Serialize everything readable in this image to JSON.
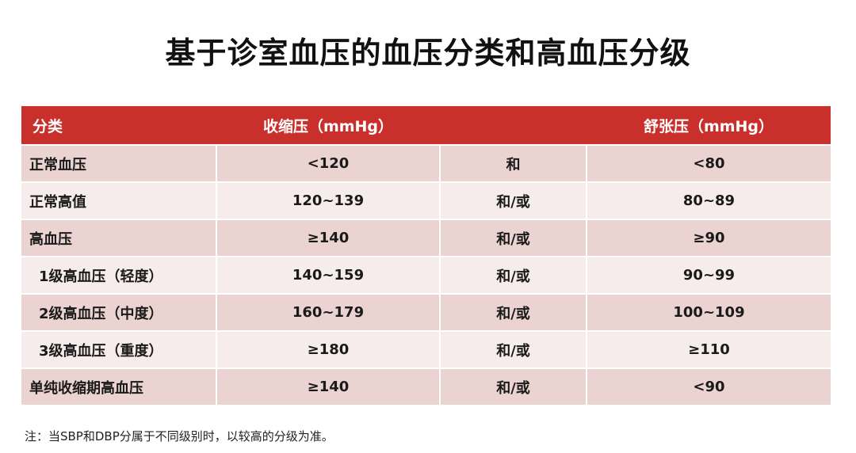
{
  "title": "基于诊室血压的血压分类和高血压分级",
  "table": {
    "headers": {
      "category": "分类",
      "systolic": "收缩压（mmHg）",
      "connector": "",
      "diastolic": "舒张压（mmHg）"
    },
    "rows": [
      {
        "category": "正常血压",
        "systolic": "<120",
        "connector": "和",
        "diastolic": "<80"
      },
      {
        "category": "正常高值",
        "systolic": "120~139",
        "connector": "和/或",
        "diastolic": "80~89"
      },
      {
        "category": "高血压",
        "systolic": "≥140",
        "connector": "和/或",
        "diastolic": "≥90"
      },
      {
        "category": "1级高血压（轻度）",
        "systolic": "140~159",
        "connector": "和/或",
        "diastolic": "90~99"
      },
      {
        "category": "2级高血压（中度）",
        "systolic": "160~179",
        "connector": "和/或",
        "diastolic": "100~109"
      },
      {
        "category": "3级高血压（重度）",
        "systolic": "≥180",
        "connector": "和/或",
        "diastolic": "≥110"
      },
      {
        "category": "单纯收缩期高血压",
        "systolic": "≥140",
        "connector": "和/或",
        "diastolic": "<90"
      }
    ]
  },
  "note": "注：当SBP和DBP分属于不同级别时，以较高的分级为准。",
  "colors": {
    "header_bg": "#c9302c",
    "row_dark": "#ead3d1",
    "row_light": "#f6eceb"
  }
}
